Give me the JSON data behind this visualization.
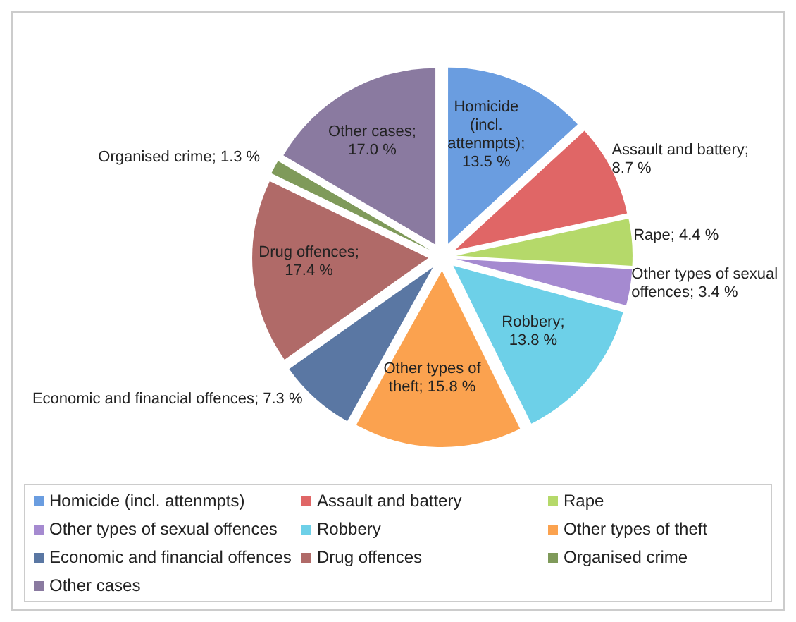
{
  "chart_data": {
    "type": "pie",
    "categories": [
      "Homicide (incl. attenmpts)",
      "Assault and battery",
      "Rape",
      "Other types of sexual offences",
      "Robbery",
      "Other types of theft",
      "Economic and financial offences",
      "Drug offences",
      "Organised crime",
      "Other cases"
    ],
    "values": [
      13.5,
      8.7,
      4.4,
      3.4,
      13.8,
      15.8,
      7.3,
      17.4,
      1.3,
      17.0
    ],
    "colors": [
      "#6a9de0",
      "#e06666",
      "#b5d96a",
      "#a58ad0",
      "#6dd0e8",
      "#fba24f",
      "#5a77a3",
      "#b06a68",
      "#7f9a5a",
      "#8a7aa0"
    ],
    "value_labels": [
      "; 13.5 %",
      "; 8.7 %",
      "; 4.4 %",
      "; 3.4 %",
      "; 13.8 %",
      "; 15.8 %",
      "; 7.3 %",
      "; 17.4 %",
      "; 1.3 %",
      "; 17.0 %"
    ],
    "legend": "bottom"
  }
}
